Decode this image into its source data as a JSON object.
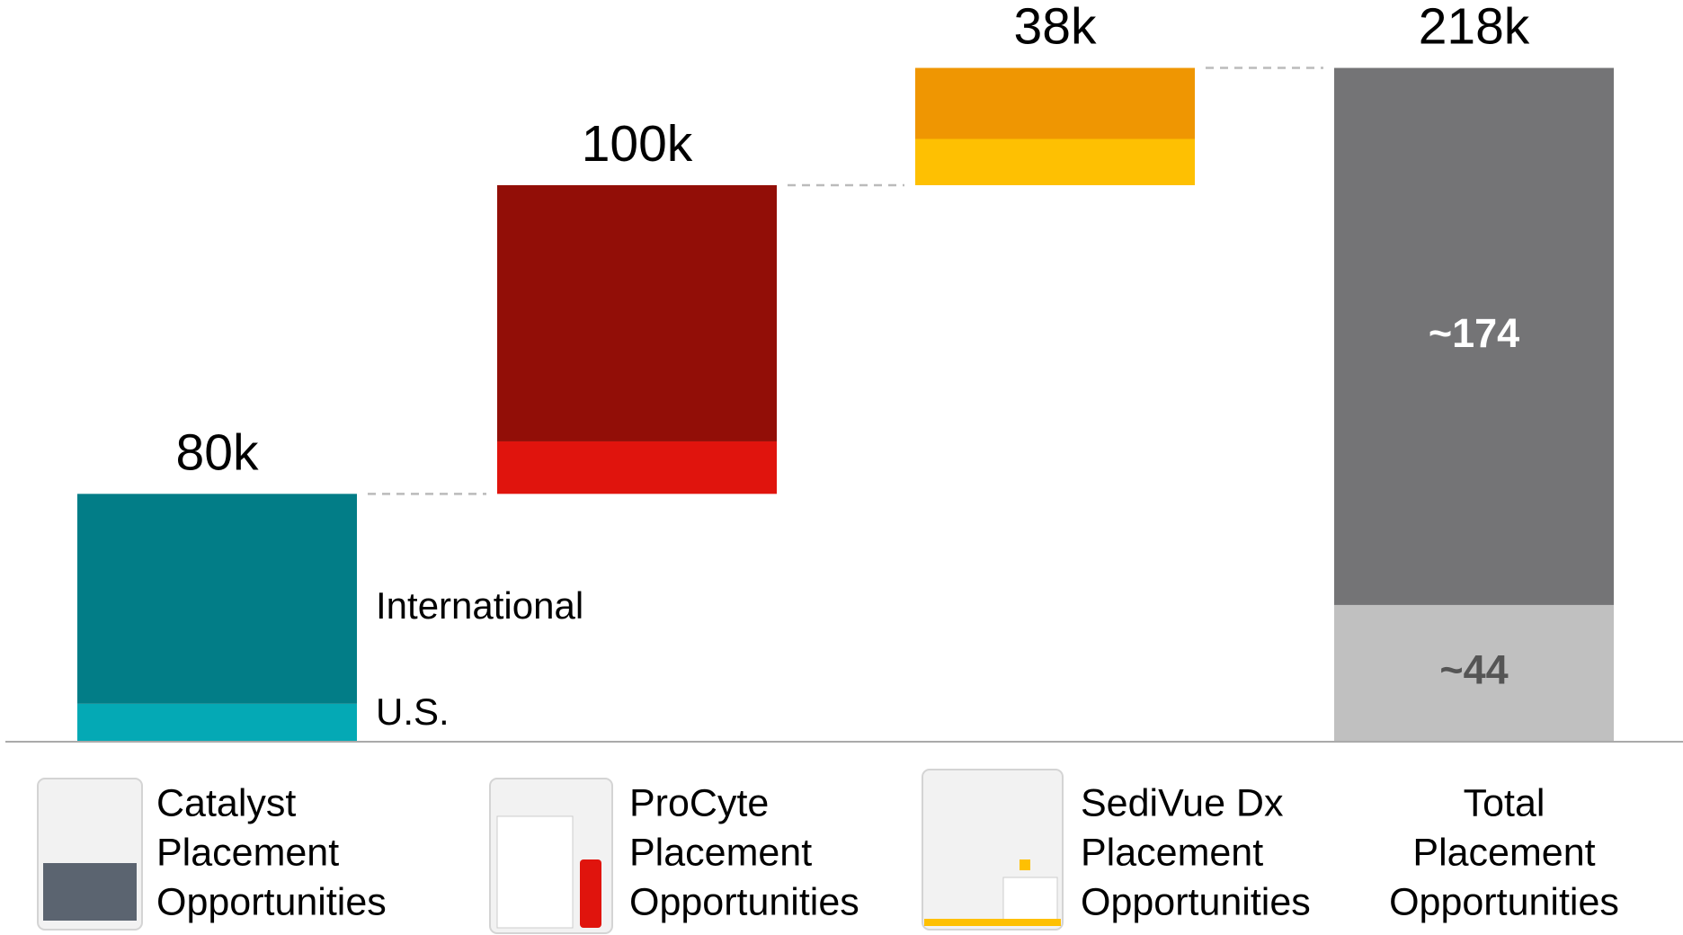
{
  "chart_data": {
    "type": "waterfall",
    "categories": [
      [
        "Catalyst",
        "Placement",
        "Opportunities"
      ],
      [
        "ProCyte",
        "Placement",
        "Opportunities"
      ],
      [
        "SediVue Dx",
        "Placement",
        "Opportunities"
      ],
      [
        "Total",
        "Placement",
        "Opportunities"
      ]
    ],
    "totals": {
      "values": [
        80,
        100,
        38,
        218
      ],
      "value_labels": [
        "80k",
        "100k",
        "38k",
        "218k"
      ]
    },
    "series": [
      {
        "name": "U.S.",
        "colors": [
          "#04a9b5",
          "#e0140d",
          "#fec002",
          "#c0c0c0"
        ],
        "values": [
          12,
          17,
          15,
          44
        ],
        "value_labels": [
          null,
          null,
          null,
          "~44"
        ]
      },
      {
        "name": "International",
        "colors": [
          "#027d87",
          "#920e07",
          "#ef9602",
          "#747476"
        ],
        "values": [
          68,
          83,
          23,
          174
        ],
        "value_labels": [
          null,
          null,
          null,
          "~174"
        ]
      }
    ],
    "ylim": [
      0,
      240
    ]
  }
}
